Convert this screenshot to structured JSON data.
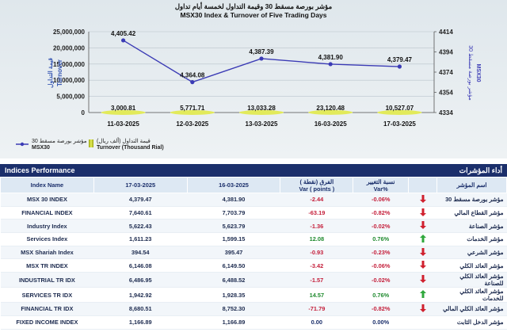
{
  "chart_data": {
    "type": "bar+line",
    "title_ar": "مؤشر بورصة مسقط 30 وقيمة التداول لخمسة أيام تداول",
    "title": "MSX30 Index & Turnover of Five Trading Days",
    "categories": [
      "11-03-2025",
      "12-03-2025",
      "13-03-2025",
      "16-03-2025",
      "17-03-2025"
    ],
    "series": [
      {
        "name": "Turnover (Thousand Rial)",
        "name_ar": "قيمة التداول (ألف ريال)",
        "axis": "left",
        "values": [
          3000.81,
          5771.71,
          13033.28,
          23120.48,
          10527.07
        ],
        "labels": [
          "3,000.81",
          "5,771.71",
          "13,033.28",
          "23,120.48",
          "10,527.07"
        ],
        "color": "#c8d21b"
      },
      {
        "name": "MSX30",
        "name_ar": "مؤشر بورصة مسقط 30",
        "axis": "right",
        "values": [
          4405.42,
          4364.08,
          4387.39,
          4381.9,
          4379.47
        ],
        "labels": [
          "4,405.42",
          "4,364.08",
          "4,387.39",
          "4,381.90",
          "4,379.47"
        ],
        "color": "#3b3bb5"
      }
    ],
    "ylabel_left": "Turnover",
    "ylabel_left_ar": "قيمة التداول",
    "ylabel_right": "MSX30",
    "ylabel_right_ar": "مؤشر بورصة مسقط 30",
    "ylim_left": [
      0,
      25000000
    ],
    "ylim_right": [
      4334,
      4414
    ],
    "yticks_left": [
      "0",
      "5,000,000",
      "10,000,000",
      "15,000,000",
      "20,000,000",
      "25,000,000"
    ],
    "yticks_right": [
      "4334",
      "4354",
      "4374",
      "4394",
      "4414"
    ],
    "grid": true,
    "legend_position": "bottom"
  },
  "panel": {
    "title": "Indices Performance",
    "title_ar": "أداء المؤشرات"
  },
  "table": {
    "headers": {
      "name": "Index Name",
      "d1": "17-03-2025",
      "d2": "16-03-2025",
      "var_ar": "الفرق (نقطة )",
      "var": "Var ( points )",
      "pct_ar": "نسبة التغيير",
      "pct": "Var%",
      "name_ar": "اسم المؤشر"
    },
    "rows": [
      {
        "name": "MSX 30 INDEX",
        "d1": "4,379.47",
        "d2": "4,381.90",
        "var": "-2.44",
        "pct": "-0.06%",
        "dir": "down",
        "name_ar": "مؤشر بورصة مسقط 30"
      },
      {
        "name": "FINANCIAL INDEX",
        "d1": "7,640.61",
        "d2": "7,703.79",
        "var": "-63.19",
        "pct": "-0.82%",
        "dir": "down",
        "name_ar": "مؤشر القطاع المالي"
      },
      {
        "name": "Industry Index",
        "d1": "5,622.43",
        "d2": "5,623.79",
        "var": "-1.36",
        "pct": "-0.02%",
        "dir": "down",
        "name_ar": "مؤشر الصناعة"
      },
      {
        "name": "Services Index",
        "d1": "1,611.23",
        "d2": "1,599.15",
        "var": "12.08",
        "pct": "0.76%",
        "dir": "up",
        "name_ar": "مؤشر الخدمات"
      },
      {
        "name": "MSX Shariah Index",
        "d1": "394.54",
        "d2": "395.47",
        "var": "-0.93",
        "pct": "-0.23%",
        "dir": "down",
        "name_ar": "مؤشر الشرعي"
      },
      {
        "name": "MSX TR INDEX",
        "d1": "6,146.08",
        "d2": "6,149.50",
        "var": "-3.42",
        "pct": "-0.06%",
        "dir": "down",
        "name_ar": "مؤشر العائد الكلي"
      },
      {
        "name": "INDUSTRIAL TR IDX",
        "d1": "6,486.95",
        "d2": "6,488.52",
        "var": "-1.57",
        "pct": "-0.02%",
        "dir": "down",
        "name_ar": "مؤشر العائد الكلي للصناعة"
      },
      {
        "name": "SERVICES TR IDX",
        "d1": "1,942.92",
        "d2": "1,928.35",
        "var": "14.57",
        "pct": "0.76%",
        "dir": "up",
        "name_ar": "مؤشر العائد الكلي للخدمات"
      },
      {
        "name": "FINANCIAL TR IDX",
        "d1": "8,680.51",
        "d2": "8,752.30",
        "var": "-71.79",
        "pct": "-0.82%",
        "dir": "down",
        "name_ar": "مؤشر العائد الكلي المالي"
      },
      {
        "name": "FIXED INCOME INDEX",
        "d1": "1,166.89",
        "d2": "1,166.89",
        "var": "0.00",
        "pct": "0.00%",
        "dir": "flat",
        "name_ar": "مؤشر الدخل الثابت"
      }
    ]
  },
  "colors": {
    "bar": "#c8d21b",
    "line": "#3b3bb5",
    "header_bg": "#1b2f6b",
    "negative": "#c41e3a",
    "positive": "#1f8a2e"
  }
}
